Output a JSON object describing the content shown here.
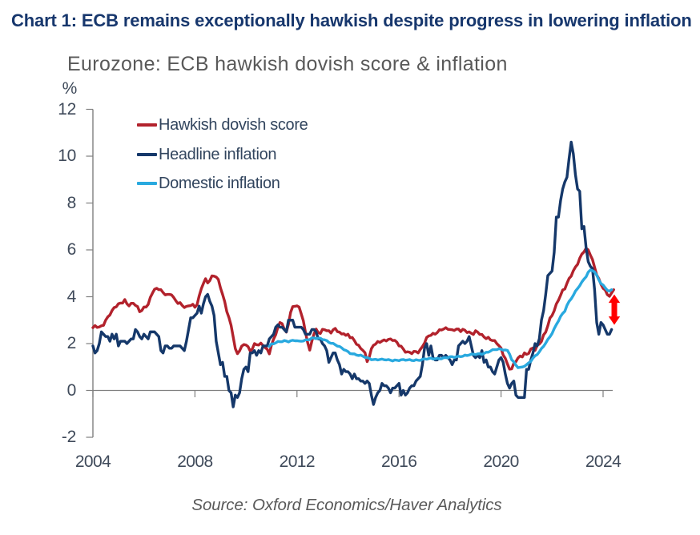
{
  "page": {
    "title": "Chart 1: ECB remains exceptionally hawkish despite progress in lowering inflation",
    "source_note": "Source: Oxford Economics/Haver Analytics"
  },
  "chart_data": {
    "type": "line",
    "title": "Eurozone: ECB hawkish dovish score & inflation",
    "unit_label": "%",
    "ylim": [
      -2,
      12
    ],
    "yticks": [
      12,
      10,
      8,
      6,
      4,
      2,
      0,
      -2
    ],
    "xticks": [
      2004,
      2008,
      2012,
      2016,
      2020,
      2024
    ],
    "grid": "zero-line-only",
    "legend_position": "top-left-inside",
    "series": [
      {
        "name": "Hawkish dovish score",
        "color": "#b2222c",
        "start": 2004.0,
        "step_years": 0.08333,
        "values": [
          2.68,
          2.77,
          2.69,
          2.71,
          2.76,
          2.78,
          3.0,
          3.14,
          3.22,
          3.41,
          3.54,
          3.57,
          3.7,
          3.73,
          3.73,
          3.88,
          3.7,
          3.61,
          3.72,
          3.72,
          3.63,
          3.58,
          3.36,
          3.41,
          3.56,
          3.56,
          3.67,
          3.97,
          4.15,
          4.32,
          4.36,
          4.3,
          4.3,
          4.18,
          4.08,
          4.1,
          4.1,
          4.08,
          3.97,
          3.83,
          3.71,
          3.75,
          3.63,
          3.54,
          3.59,
          3.61,
          3.62,
          3.68,
          3.55,
          3.66,
          4.04,
          4.34,
          4.57,
          4.77,
          4.59,
          4.69,
          4.89,
          4.88,
          4.84,
          4.74,
          4.38,
          4.1,
          3.79,
          3.36,
          3.11,
          2.78,
          2.28,
          1.78,
          1.57,
          1.69,
          1.89,
          1.96,
          1.94,
          1.87,
          1.68,
          1.77,
          2.0,
          1.95,
          1.94,
          2.02,
          1.92,
          1.83,
          1.76,
          1.56,
          1.94,
          2.19,
          2.38,
          2.69,
          2.9,
          2.85,
          2.62,
          2.49,
          2.83,
          3.33,
          3.58,
          3.59,
          3.61,
          3.56,
          3.27,
          2.97,
          2.48,
          2.05,
          1.72,
          2.1,
          2.41,
          2.62,
          2.47,
          2.43,
          2.61,
          2.59,
          2.55,
          2.55,
          2.45,
          2.59,
          2.65,
          2.51,
          2.49,
          2.41,
          2.42,
          2.35,
          2.4,
          2.25,
          2.26,
          2.13,
          1.97,
          1.93,
          1.79,
          1.71,
          1.61,
          1.23,
          1.42,
          1.78,
          1.93,
          1.98,
          2.09,
          2.05,
          2.11,
          2.16,
          2.11,
          2.18,
          2.2,
          2.13,
          2.14,
          2.06,
          1.9,
          1.89,
          1.77,
          1.63,
          1.65,
          1.63,
          1.57,
          1.67,
          1.66,
          1.6,
          1.75,
          1.87,
          2.02,
          2.26,
          2.33,
          2.35,
          2.44,
          2.4,
          2.47,
          2.59,
          2.58,
          2.62,
          2.68,
          2.61,
          2.6,
          2.59,
          2.56,
          2.62,
          2.62,
          2.51,
          2.61,
          2.57,
          2.47,
          2.5,
          2.44,
          2.39,
          2.55,
          2.49,
          2.39,
          2.39,
          2.28,
          2.21,
          2.27,
          2.16,
          2.13,
          2.13,
          2.0,
          1.91,
          1.81,
          1.51,
          1.37,
          1.13,
          0.91,
          0.92,
          1.16,
          1.23,
          1.39,
          1.47,
          1.43,
          1.6,
          1.54,
          1.58,
          1.77,
          1.81,
          1.71,
          1.93,
          1.98,
          2.09,
          2.37,
          2.49,
          2.76,
          3.09,
          3.2,
          3.4,
          3.69,
          3.85,
          4.06,
          4.29,
          4.33,
          4.57,
          4.78,
          4.88,
          5.11,
          5.27,
          5.38,
          5.64,
          5.82,
          5.91,
          6.07,
          6.0,
          5.78,
          5.59,
          5.26,
          4.93,
          4.77,
          4.53,
          4.36,
          4.29,
          4.09,
          4.02,
          4.16,
          4.3
        ]
      },
      {
        "name": "Headline inflation",
        "color": "#15386a",
        "start": 2004.0,
        "step_years": 0.08333,
        "values": [
          1.9,
          1.6,
          1.7,
          2.0,
          2.5,
          2.4,
          2.3,
          2.3,
          2.1,
          2.4,
          2.2,
          2.4,
          1.9,
          2.1,
          2.1,
          2.1,
          2.0,
          2.1,
          2.2,
          2.2,
          2.6,
          2.5,
          2.3,
          2.2,
          2.4,
          2.3,
          2.2,
          2.5,
          2.5,
          2.5,
          2.4,
          2.3,
          1.7,
          1.6,
          1.9,
          1.9,
          1.8,
          1.8,
          1.9,
          1.9,
          1.9,
          1.9,
          1.8,
          1.7,
          2.1,
          2.6,
          3.1,
          3.1,
          3.2,
          3.3,
          3.6,
          3.3,
          3.7,
          4.0,
          4.1,
          3.8,
          3.6,
          3.2,
          2.1,
          1.6,
          1.1,
          1.2,
          0.6,
          0.6,
          0.0,
          -0.1,
          -0.7,
          -0.2,
          -0.3,
          -0.1,
          0.5,
          0.9,
          1.0,
          0.8,
          1.6,
          1.6,
          1.7,
          1.5,
          1.7,
          1.6,
          1.9,
          1.9,
          1.9,
          2.2,
          2.3,
          2.4,
          2.7,
          2.8,
          2.7,
          2.7,
          2.6,
          2.5,
          3.0,
          3.0,
          3.0,
          2.7,
          2.7,
          2.7,
          2.7,
          2.6,
          2.4,
          2.4,
          2.4,
          2.6,
          2.6,
          2.5,
          2.2,
          2.2,
          2.0,
          1.9,
          1.7,
          1.2,
          1.4,
          1.6,
          1.6,
          1.3,
          1.1,
          0.7,
          0.9,
          0.8,
          0.8,
          0.7,
          0.5,
          0.7,
          0.5,
          0.5,
          0.4,
          0.4,
          0.3,
          0.4,
          0.3,
          -0.2,
          -0.6,
          -0.3,
          -0.1,
          0.0,
          0.3,
          0.2,
          0.2,
          0.1,
          -0.1,
          0.1,
          0.1,
          0.2,
          0.3,
          -0.2,
          0.0,
          -0.2,
          -0.1,
          0.1,
          0.2,
          0.2,
          0.4,
          0.5,
          0.6,
          1.1,
          1.8,
          2.0,
          1.5,
          1.9,
          1.4,
          1.3,
          1.3,
          1.5,
          1.5,
          1.4,
          1.5,
          1.4,
          1.3,
          1.1,
          1.3,
          1.3,
          1.9,
          2.0,
          2.1,
          2.0,
          2.1,
          2.3,
          1.9,
          1.5,
          1.4,
          1.5,
          1.4,
          1.7,
          1.2,
          1.3,
          1.0,
          1.0,
          0.8,
          0.7,
          1.0,
          1.3,
          1.4,
          1.2,
          0.7,
          0.3,
          0.1,
          0.3,
          0.4,
          -0.2,
          -0.3,
          -0.3,
          -0.3,
          -0.3,
          0.9,
          0.9,
          1.3,
          1.6,
          2.0,
          1.9,
          2.2,
          3.0,
          3.4,
          4.1,
          4.9,
          5.0,
          5.1,
          5.9,
          7.4,
          7.4,
          8.1,
          8.6,
          8.9,
          9.1,
          9.9,
          10.6,
          10.1,
          9.2,
          8.6,
          8.5,
          6.9,
          7.0,
          6.1,
          5.5,
          5.3,
          5.2,
          4.3,
          2.9,
          2.4,
          2.9,
          2.8,
          2.6,
          2.4,
          2.4,
          2.6
        ]
      },
      {
        "name": "Domestic inflation",
        "color": "#29a9df",
        "start": 2010.917,
        "step_years": 0.08333,
        "values": [
          1.88,
          1.99,
          1.99,
          2.03,
          2.09,
          2.08,
          2.08,
          2.13,
          2.11,
          2.07,
          2.12,
          2.14,
          2.12,
          2.12,
          2.11,
          2.1,
          2.11,
          2.16,
          2.16,
          2.17,
          2.24,
          2.24,
          2.21,
          2.23,
          2.23,
          2.17,
          2.16,
          2.13,
          2.05,
          2.01,
          2.01,
          1.95,
          1.89,
          1.88,
          1.82,
          1.74,
          1.71,
          1.66,
          1.57,
          1.56,
          1.56,
          1.51,
          1.49,
          1.51,
          1.46,
          1.41,
          1.4,
          1.37,
          1.31,
          1.32,
          1.33,
          1.3,
          1.32,
          1.34,
          1.31,
          1.3,
          1.32,
          1.29,
          1.26,
          1.3,
          1.29,
          1.27,
          1.31,
          1.32,
          1.29,
          1.3,
          1.32,
          1.28,
          1.27,
          1.31,
          1.29,
          1.28,
          1.33,
          1.35,
          1.33,
          1.36,
          1.38,
          1.34,
          1.35,
          1.37,
          1.35,
          1.35,
          1.4,
          1.4,
          1.39,
          1.44,
          1.44,
          1.41,
          1.44,
          1.46,
          1.44,
          1.46,
          1.51,
          1.49,
          1.51,
          1.55,
          1.55,
          1.53,
          1.56,
          1.57,
          1.54,
          1.58,
          1.63,
          1.63,
          1.68,
          1.74,
          1.74,
          1.74,
          1.78,
          1.76,
          1.72,
          1.73,
          1.71,
          1.55,
          1.31,
          1.22,
          1.08,
          0.97,
          0.99,
          1.0,
          1.03,
          1.1,
          1.18,
          1.24,
          1.38,
          1.48,
          1.53,
          1.65,
          1.79,
          1.88,
          2.02,
          2.18,
          2.29,
          2.43,
          2.64,
          2.81,
          2.96,
          3.16,
          3.29,
          3.38,
          3.63,
          3.8,
          3.91,
          4.06,
          4.24,
          4.35,
          4.47,
          4.63,
          4.75,
          4.85,
          5.05,
          5.14,
          5.11,
          5.06,
          4.92,
          4.72,
          4.56,
          4.5,
          4.38,
          4.27,
          4.24,
          4.3
        ]
      }
    ],
    "annotation_arrow": {
      "x": 2024.44,
      "y_from": 4.1,
      "y_to": 2.8,
      "color": "#ff0000"
    }
  }
}
